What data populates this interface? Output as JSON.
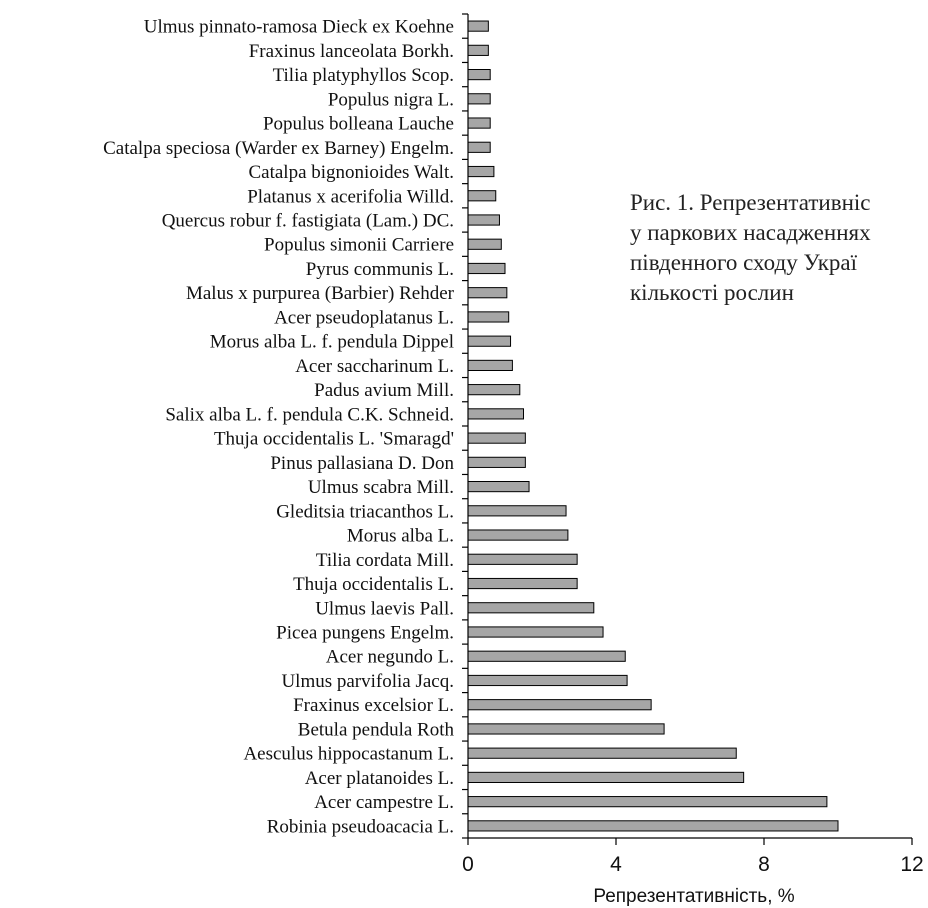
{
  "caption": {
    "lines": [
      "Рис. 1. Репрезентативніс",
      "у паркових насадженнях",
      "південного сходу Украї",
      "кількості рослин"
    ]
  },
  "chart_data": {
    "type": "bar",
    "orientation": "horizontal",
    "categories": [
      "Ulmus pinnato-ramosa Dieck ex Koehne",
      "Fraxinus lanceolata Borkh.",
      "Tilia platyphyllos Scop.",
      "Populus nigra L.",
      "Populus bolleana Lauche",
      "Catalpa speciosa (Warder ex Barney) Engelm.",
      "Catalpa bignonioides Walt.",
      "Platanus x acerifolia Willd.",
      "Quercus robur f. fastigiata (Lam.) DC.",
      "Populus simonii Carriere",
      "Pyrus communis L.",
      "Malus x purpurea (Barbier) Rehder",
      "Acer pseudoplatanus L.",
      "Morus alba L. f. pendula Dippel",
      "Acer saccharinum L.",
      "Padus avium Mill.",
      "Salix alba L. f. pendula C.K. Schneid.",
      "Thuja occidentalis L. 'Smaragd'",
      "Pinus pallasiana D. Don",
      "Ulmus scabra Mill.",
      "Gleditsia triacanthos L.",
      "Morus alba L.",
      "Tilia cordata Mill.",
      "Thuja occidentalis L.",
      "Ulmus laevis Pall.",
      "Picea pungens Engelm.",
      "Acer negundo L.",
      "Ulmus parvifolia Jacq.",
      "Fraxinus excelsior L.",
      "Betula pendula Roth",
      "Aesculus hippocastanum L.",
      "Acer platanoides L.",
      "Acer campestre L.",
      "Robinia pseudoacacia L."
    ],
    "values": [
      0.55,
      0.55,
      0.6,
      0.6,
      0.6,
      0.6,
      0.7,
      0.75,
      0.85,
      0.9,
      1.0,
      1.05,
      1.1,
      1.15,
      1.2,
      1.4,
      1.5,
      1.55,
      1.55,
      1.65,
      2.65,
      2.7,
      2.95,
      2.95,
      3.4,
      3.65,
      4.25,
      4.3,
      4.95,
      5.3,
      7.25,
      7.45,
      9.7,
      10.0
    ],
    "xlabel": "Репрезентативність, %",
    "ylabel": "",
    "xlim": [
      0,
      12
    ],
    "xticks": [
      "0",
      "4",
      "8",
      "12"
    ],
    "xtick_values": [
      0,
      4,
      8,
      12
    ],
    "grid": false,
    "bar_color": "#a6a6a6"
  }
}
